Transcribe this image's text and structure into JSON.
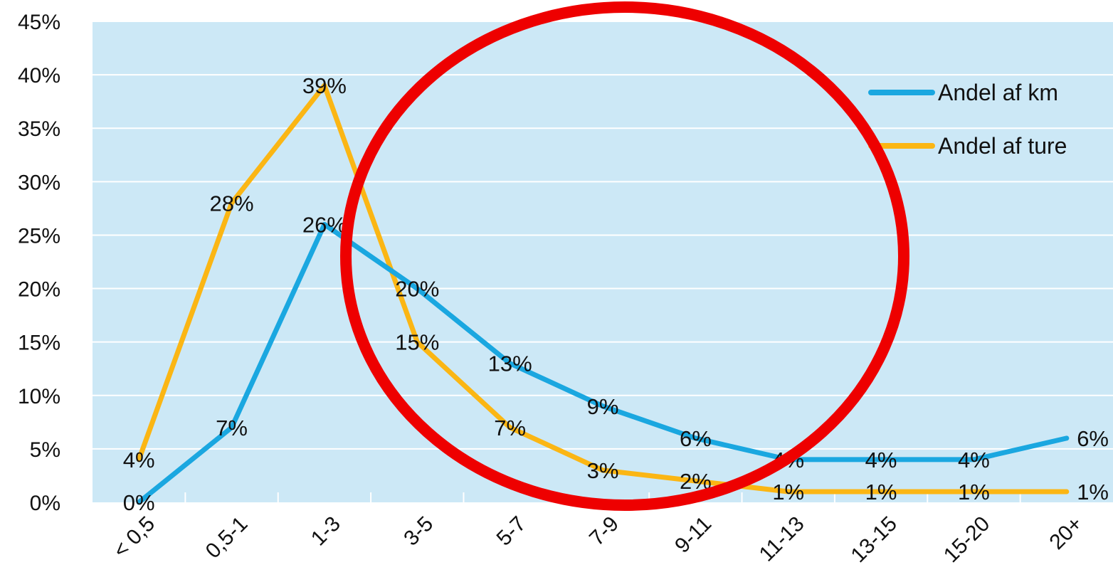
{
  "chart_data": {
    "type": "line",
    "title": "",
    "xlabel": "",
    "ylabel": "",
    "categories": [
      "< 0,5",
      "0,5-1",
      "1-3",
      "3-5",
      "5-7",
      "7-9",
      "9-11",
      "11-13",
      "13-15",
      "15-20",
      "20+"
    ],
    "ylim": [
      0,
      45
    ],
    "yticks": [
      "0%",
      "5%",
      "10%",
      "15%",
      "20%",
      "25%",
      "30%",
      "35%",
      "40%",
      "45%"
    ],
    "grid": true,
    "legend": "top-right",
    "series": [
      {
        "name": "Andel af km",
        "color": "#1aa7e0",
        "values": [
          0,
          7,
          26,
          20,
          13,
          9,
          6,
          4,
          4,
          4,
          6
        ],
        "labels": [
          "0%",
          "7%",
          "26%",
          "20%",
          "13%",
          "9%",
          "6%",
          "4%",
          "4%",
          "4%",
          "6%"
        ]
      },
      {
        "name": "Andel af ture",
        "color": "#fbb614",
        "values": [
          4,
          28,
          39,
          15,
          7,
          3,
          2,
          1,
          1,
          1,
          1
        ],
        "labels": [
          "4%",
          "28%",
          "39%",
          "15%",
          "7%",
          "3%",
          "2%",
          "1%",
          "1%",
          "1%",
          "1%"
        ]
      }
    ],
    "annotation": {
      "shape": "circle",
      "color": "#ee0000"
    }
  }
}
